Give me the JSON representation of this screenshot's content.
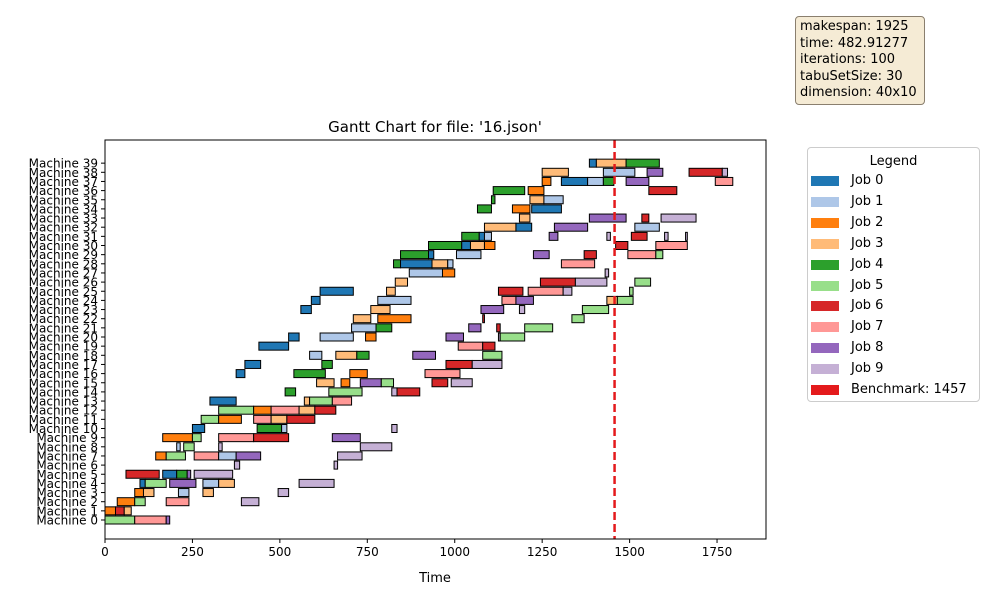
{
  "chart_data": {
    "type": "gantt",
    "title": "Gantt Chart for file: '16.json'",
    "xlabel": "Time",
    "xlim": [
      0,
      1890
    ],
    "xticks": [
      0,
      250,
      500,
      750,
      1000,
      1250,
      1500,
      1750
    ],
    "machines": [
      "Machine 0",
      "Machine 1",
      "Machine 2",
      "Machine 3",
      "Machine 4",
      "Machine 5",
      "Machine 6",
      "Machine 7",
      "Machine 8",
      "Machine 9",
      "Machine 10",
      "Machine 11",
      "Machine 12",
      "Machine 13",
      "Machine 14",
      "Machine 15",
      "Machine 16",
      "Machine 17",
      "Machine 18",
      "Machine 19",
      "Machine 20",
      "Machine 21",
      "Machine 22",
      "Machine 23",
      "Machine 24",
      "Machine 25",
      "Machine 26",
      "Machine 27",
      "Machine 28",
      "Machine 29",
      "Machine 30",
      "Machine 31",
      "Machine 32",
      "Machine 33",
      "Machine 34",
      "Machine 35",
      "Machine 36",
      "Machine 37",
      "Machine 38",
      "Machine 39"
    ],
    "job_colors": [
      "#1f77b4",
      "#aec7e8",
      "#ff7f0e",
      "#ffbb78",
      "#2ca02c",
      "#98df8a",
      "#d62728",
      "#ff9896",
      "#9467bd",
      "#c5b0d5"
    ],
    "benchmark": 1457,
    "benchmark_color": "#e41a1c",
    "legend": {
      "title": "Legend",
      "items": [
        "Job 0",
        "Job 1",
        "Job 2",
        "Job 3",
        "Job 4",
        "Job 5",
        "Job 6",
        "Job 7",
        "Job 8",
        "Job 9",
        "Benchmark: 1457"
      ]
    },
    "tasks": [
      [
        0,
        5,
        0,
        85
      ],
      [
        0,
        7,
        85,
        175
      ],
      [
        0,
        8,
        175,
        185
      ],
      [
        1,
        2,
        0,
        30
      ],
      [
        1,
        6,
        30,
        55
      ],
      [
        1,
        3,
        55,
        75
      ],
      [
        2,
        2,
        35,
        85
      ],
      [
        2,
        5,
        85,
        115
      ],
      [
        2,
        7,
        175,
        240
      ],
      [
        2,
        9,
        390,
        440
      ],
      [
        3,
        2,
        85,
        110
      ],
      [
        3,
        3,
        110,
        140
      ],
      [
        3,
        1,
        210,
        240
      ],
      [
        3,
        3,
        280,
        310
      ],
      [
        3,
        9,
        495,
        525
      ],
      [
        4,
        0,
        100,
        115
      ],
      [
        4,
        5,
        115,
        175
      ],
      [
        4,
        8,
        185,
        260
      ],
      [
        4,
        1,
        280,
        325
      ],
      [
        4,
        3,
        325,
        370
      ],
      [
        4,
        9,
        555,
        655
      ],
      [
        5,
        6,
        60,
        155
      ],
      [
        5,
        0,
        165,
        205
      ],
      [
        5,
        4,
        205,
        235
      ],
      [
        5,
        8,
        235,
        245
      ],
      [
        5,
        9,
        255,
        365
      ],
      [
        6,
        9,
        370,
        385
      ],
      [
        6,
        9,
        655,
        665
      ],
      [
        7,
        2,
        145,
        175
      ],
      [
        7,
        5,
        175,
        230
      ],
      [
        7,
        7,
        255,
        325
      ],
      [
        7,
        1,
        325,
        375
      ],
      [
        7,
        8,
        375,
        445
      ],
      [
        7,
        9,
        665,
        735
      ],
      [
        8,
        1,
        205,
        215
      ],
      [
        8,
        5,
        225,
        255
      ],
      [
        8,
        9,
        325,
        335
      ],
      [
        8,
        9,
        730,
        820
      ],
      [
        9,
        2,
        165,
        250
      ],
      [
        9,
        5,
        250,
        275
      ],
      [
        9,
        7,
        325,
        425
      ],
      [
        9,
        6,
        425,
        525
      ],
      [
        9,
        8,
        650,
        730
      ],
      [
        10,
        0,
        250,
        285
      ],
      [
        10,
        4,
        435,
        505
      ],
      [
        10,
        1,
        505,
        520
      ],
      [
        10,
        9,
        820,
        835
      ],
      [
        11,
        5,
        275,
        325
      ],
      [
        11,
        2,
        325,
        390
      ],
      [
        11,
        7,
        425,
        475
      ],
      [
        11,
        3,
        475,
        520
      ],
      [
        11,
        6,
        520,
        600
      ],
      [
        12,
        5,
        325,
        425
      ],
      [
        12,
        2,
        425,
        475
      ],
      [
        12,
        7,
        475,
        555
      ],
      [
        12,
        3,
        555,
        600
      ],
      [
        12,
        6,
        600,
        660
      ],
      [
        13,
        0,
        300,
        375
      ],
      [
        13,
        3,
        570,
        585
      ],
      [
        13,
        5,
        585,
        650
      ],
      [
        13,
        7,
        650,
        705
      ],
      [
        14,
        4,
        515,
        545
      ],
      [
        14,
        5,
        640,
        735
      ],
      [
        14,
        9,
        820,
        835
      ],
      [
        14,
        6,
        835,
        900
      ],
      [
        15,
        3,
        605,
        655
      ],
      [
        15,
        2,
        675,
        700
      ],
      [
        15,
        8,
        730,
        790
      ],
      [
        15,
        5,
        790,
        825
      ],
      [
        15,
        6,
        935,
        980
      ],
      [
        15,
        9,
        990,
        1050
      ],
      [
        16,
        0,
        375,
        400
      ],
      [
        16,
        4,
        540,
        630
      ],
      [
        16,
        2,
        700,
        750
      ],
      [
        16,
        7,
        915,
        1015
      ],
      [
        17,
        0,
        400,
        445
      ],
      [
        17,
        4,
        620,
        650
      ],
      [
        17,
        6,
        975,
        1050
      ],
      [
        17,
        9,
        1050,
        1135
      ],
      [
        18,
        1,
        585,
        620
      ],
      [
        18,
        3,
        660,
        720
      ],
      [
        18,
        4,
        720,
        755
      ],
      [
        18,
        8,
        880,
        945
      ],
      [
        18,
        5,
        1080,
        1135
      ],
      [
        19,
        0,
        440,
        525
      ],
      [
        19,
        7,
        1010,
        1080
      ],
      [
        19,
        6,
        1080,
        1115
      ],
      [
        20,
        0,
        525,
        555
      ],
      [
        20,
        1,
        615,
        710
      ],
      [
        20,
        2,
        745,
        775
      ],
      [
        20,
        8,
        975,
        1025
      ],
      [
        20,
        9,
        1125,
        1130
      ],
      [
        20,
        5,
        1130,
        1200
      ],
      [
        21,
        1,
        705,
        775
      ],
      [
        21,
        4,
        775,
        820
      ],
      [
        21,
        8,
        1040,
        1075
      ],
      [
        21,
        6,
        1120,
        1130
      ],
      [
        21,
        5,
        1200,
        1280
      ],
      [
        22,
        3,
        710,
        760
      ],
      [
        22,
        2,
        780,
        875
      ],
      [
        22,
        6,
        1080,
        1085
      ],
      [
        22,
        5,
        1335,
        1370
      ],
      [
        23,
        0,
        560,
        590
      ],
      [
        23,
        3,
        760,
        815
      ],
      [
        23,
        8,
        1075,
        1140
      ],
      [
        23,
        9,
        1185,
        1200
      ],
      [
        23,
        5,
        1365,
        1440
      ],
      [
        24,
        0,
        590,
        615
      ],
      [
        24,
        1,
        780,
        875
      ],
      [
        24,
        7,
        1135,
        1175
      ],
      [
        24,
        8,
        1175,
        1225
      ],
      [
        24,
        3,
        1435,
        1465
      ],
      [
        24,
        5,
        1465,
        1510
      ],
      [
        25,
        0,
        615,
        710
      ],
      [
        25,
        3,
        805,
        830
      ],
      [
        25,
        6,
        1125,
        1195
      ],
      [
        25,
        7,
        1210,
        1310
      ],
      [
        25,
        9,
        1310,
        1335
      ],
      [
        25,
        5,
        1500,
        1510
      ],
      [
        26,
        3,
        830,
        865
      ],
      [
        26,
        6,
        1245,
        1345
      ],
      [
        26,
        9,
        1345,
        1435
      ],
      [
        26,
        5,
        1515,
        1560
      ],
      [
        27,
        1,
        870,
        965
      ],
      [
        27,
        2,
        965,
        1000
      ],
      [
        27,
        9,
        1430,
        1440
      ],
      [
        28,
        4,
        825,
        845
      ],
      [
        28,
        0,
        845,
        935
      ],
      [
        28,
        3,
        935,
        980
      ],
      [
        28,
        1,
        980,
        995
      ],
      [
        28,
        7,
        1305,
        1400
      ],
      [
        29,
        4,
        845,
        925
      ],
      [
        29,
        0,
        925,
        940
      ],
      [
        29,
        1,
        1005,
        1075
      ],
      [
        29,
        8,
        1225,
        1270
      ],
      [
        29,
        6,
        1370,
        1405
      ],
      [
        29,
        7,
        1495,
        1575
      ],
      [
        29,
        5,
        1575,
        1595
      ],
      [
        30,
        4,
        925,
        1020
      ],
      [
        30,
        0,
        1020,
        1045
      ],
      [
        30,
        3,
        1045,
        1085
      ],
      [
        30,
        2,
        1085,
        1115
      ],
      [
        30,
        6,
        1460,
        1495
      ],
      [
        30,
        7,
        1575,
        1665
      ],
      [
        31,
        4,
        1020,
        1070
      ],
      [
        31,
        0,
        1070,
        1085
      ],
      [
        31,
        1,
        1085,
        1105
      ],
      [
        31,
        8,
        1270,
        1295
      ],
      [
        31,
        9,
        1435,
        1445
      ],
      [
        31,
        6,
        1505,
        1550
      ],
      [
        31,
        9,
        1600,
        1610
      ],
      [
        31,
        9,
        1660,
        1665
      ],
      [
        32,
        3,
        1085,
        1175
      ],
      [
        32,
        0,
        1175,
        1220
      ],
      [
        32,
        8,
        1285,
        1380
      ],
      [
        32,
        1,
        1515,
        1585
      ],
      [
        33,
        3,
        1185,
        1215
      ],
      [
        33,
        8,
        1385,
        1490
      ],
      [
        33,
        6,
        1535,
        1555
      ],
      [
        33,
        9,
        1590,
        1690
      ],
      [
        34,
        4,
        1065,
        1105
      ],
      [
        34,
        2,
        1165,
        1215
      ],
      [
        34,
        0,
        1220,
        1305
      ],
      [
        35,
        4,
        1105,
        1115
      ],
      [
        35,
        3,
        1215,
        1255
      ],
      [
        35,
        1,
        1255,
        1310
      ],
      [
        36,
        4,
        1110,
        1200
      ],
      [
        36,
        2,
        1210,
        1255
      ],
      [
        36,
        6,
        1555,
        1635
      ],
      [
        37,
        2,
        1250,
        1275
      ],
      [
        37,
        0,
        1305,
        1380
      ],
      [
        37,
        1,
        1380,
        1425
      ],
      [
        37,
        4,
        1425,
        1455
      ],
      [
        37,
        8,
        1490,
        1555
      ],
      [
        37,
        7,
        1745,
        1795
      ],
      [
        38,
        3,
        1250,
        1325
      ],
      [
        38,
        1,
        1425,
        1515
      ],
      [
        38,
        8,
        1550,
        1595
      ],
      [
        38,
        6,
        1670,
        1765
      ],
      [
        38,
        9,
        1765,
        1780
      ],
      [
        39,
        0,
        1385,
        1405
      ],
      [
        39,
        3,
        1405,
        1490
      ],
      [
        39,
        4,
        1490,
        1585
      ]
    ]
  },
  "info": {
    "makespan": "makespan: 1925",
    "time": "time: 482.91277",
    "iterations": "iterations: 100",
    "tabu": "tabuSetSize: 30",
    "dimension": "dimension: 40x10"
  }
}
